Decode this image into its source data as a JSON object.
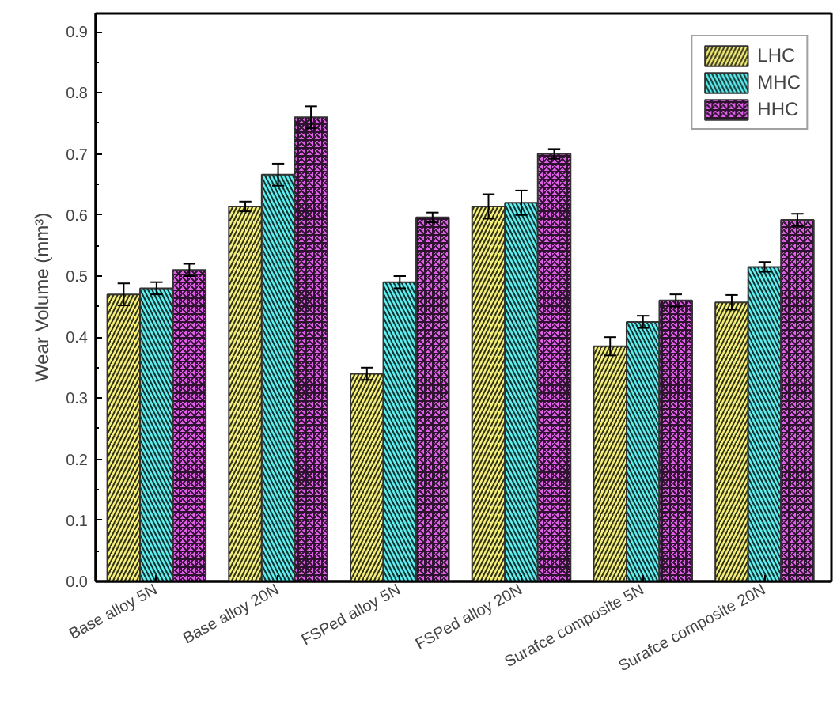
{
  "chart_data": {
    "type": "bar",
    "ylabel": "Wear Volume (mm³)",
    "categories": [
      "Base alloy 5N",
      "Base alloy 20N",
      "FSPed alloy 5N",
      "FSPed alloy 20N",
      "Surafce composite 5N",
      "Surafce composite 20N"
    ],
    "series": [
      {
        "name": "LHC",
        "color": "#f5f07a",
        "values": [
          0.47,
          0.614,
          0.34,
          0.614,
          0.385,
          0.457
        ],
        "errors": [
          0.018,
          0.008,
          0.01,
          0.02,
          0.015,
          0.012
        ]
      },
      {
        "name": "MHC",
        "color": "#5ff0f0",
        "values": [
          0.48,
          0.666,
          0.49,
          0.62,
          0.425,
          0.515
        ],
        "errors": [
          0.01,
          0.018,
          0.01,
          0.02,
          0.01,
          0.008
        ]
      },
      {
        "name": "HHC",
        "color": "#e060e8",
        "values": [
          0.51,
          0.76,
          0.596,
          0.7,
          0.46,
          0.592
        ],
        "errors": [
          0.01,
          0.018,
          0.008,
          0.008,
          0.01,
          0.01
        ]
      }
    ],
    "ylim": [
      0,
      0.93
    ],
    "yticks": [
      {
        "value": 0,
        "label": "0.0"
      },
      0.1,
      0.2,
      0.3,
      0.4,
      0.5,
      0.6,
      0.7,
      0.8,
      0.9
    ],
    "grid": false,
    "legend": "top right"
  }
}
